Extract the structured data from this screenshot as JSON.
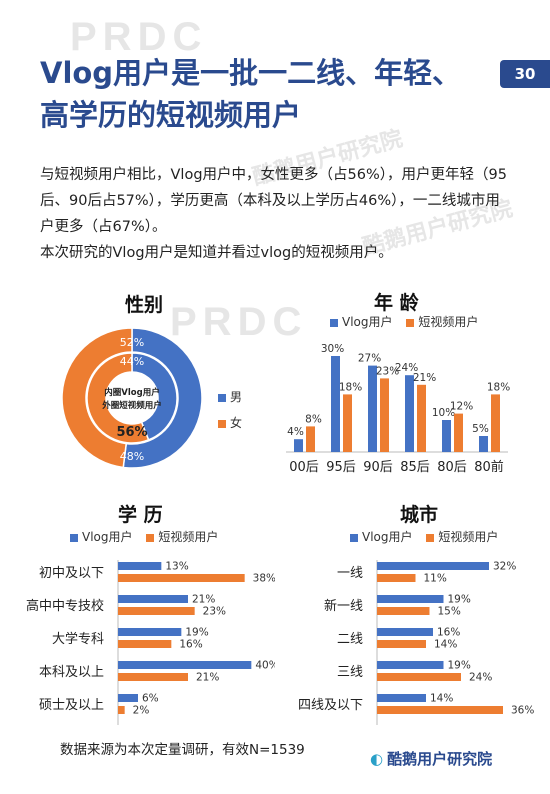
{
  "page": {
    "title": "Vlog用户是一批一二线、年轻、高学历的短视频用户",
    "page_number": "30",
    "intro": "与短视频用户相比，Vlog用户中，女性更多（占56%），用户更年轻（95后、90后占57%），学历更高（本科及以上学历占46%），一二线城市用户更多（占67%）。",
    "definition": "本次研究的Vlog用户是知道并看过vlog的短视频用户。",
    "footnote": "数据来源为本次定量调研，有效N=1539",
    "logo_text": "酷鹅用户研究院",
    "watermark": "PRDC",
    "watermark_text": "酷鹅用户研究院"
  },
  "colors": {
    "vlog": "#4472c4",
    "short": "#ed7d31",
    "title": "#2a4a8e"
  },
  "chart_data": [
    {
      "type": "pie",
      "title": "性别",
      "center_label": [
        "内圈Vlog用户",
        "外圈短视频用户"
      ],
      "categories": [
        "男",
        "女"
      ],
      "series": [
        {
          "name": "外圈短视频用户",
          "values": [
            52,
            48
          ],
          "labels": [
            "52%",
            "48%"
          ]
        },
        {
          "name": "内圈Vlog用户",
          "values": [
            44,
            56
          ],
          "labels": [
            "44%",
            "56%"
          ]
        }
      ],
      "legend": [
        "男",
        "女"
      ]
    },
    {
      "type": "bar",
      "title": "年 龄",
      "categories": [
        "00后",
        "95后",
        "90后",
        "85后",
        "80后",
        "80前"
      ],
      "series": [
        {
          "name": "Vlog用户",
          "values": [
            4,
            30,
            27,
            24,
            10,
            5
          ]
        },
        {
          "name": "短视频用户",
          "values": [
            8,
            18,
            23,
            21,
            12,
            18
          ]
        }
      ],
      "ylim": [
        0,
        35
      ]
    },
    {
      "type": "bar",
      "orientation": "horizontal",
      "title": "学 历",
      "categories": [
        "初中及以下",
        "高中中专技校",
        "大学专科",
        "本科及以上",
        "硕士及以上"
      ],
      "series": [
        {
          "name": "Vlog用户",
          "values": [
            13,
            21,
            19,
            40,
            6
          ]
        },
        {
          "name": "短视频用户",
          "values": [
            38,
            23,
            16,
            21,
            2
          ]
        }
      ],
      "xlim": [
        0,
        45
      ]
    },
    {
      "type": "bar",
      "orientation": "horizontal",
      "title": "城市",
      "categories": [
        "一线",
        "新一线",
        "二线",
        "三线",
        "四线及以下"
      ],
      "series": [
        {
          "name": "Vlog用户",
          "values": [
            32,
            19,
            16,
            19,
            14
          ]
        },
        {
          "name": "短视频用户",
          "values": [
            11,
            15,
            14,
            24,
            36
          ]
        }
      ],
      "xlim": [
        0,
        40
      ]
    }
  ]
}
